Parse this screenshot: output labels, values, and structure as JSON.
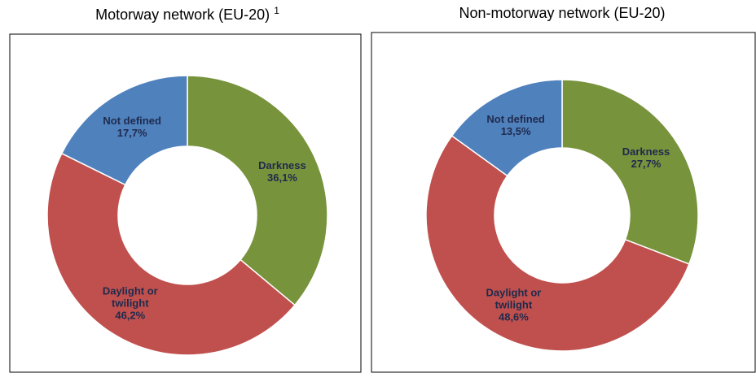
{
  "chart_data": [
    {
      "type": "donut",
      "title": "Motorway network (EU-20)",
      "title_superscript": "1",
      "categories": [
        "Darkness",
        "Daylight or twilight",
        "Not defined"
      ],
      "values": [
        36.1,
        46.2,
        17.7
      ],
      "value_labels": [
        "36,1%",
        "46,2%",
        "17,7%"
      ],
      "colors": [
        "#77933c",
        "#c0504d",
        "#4f81bd"
      ]
    },
    {
      "type": "donut",
      "title": "Non-motorway network (EU-20)",
      "categories": [
        "Darkness",
        "Daylight or twilight",
        "Not defined"
      ],
      "values": [
        27.7,
        48.6,
        13.5
      ],
      "value_labels": [
        "27,7%",
        "48,6%",
        "13,5%"
      ],
      "colors": [
        "#77933c",
        "#c0504d",
        "#4f81bd"
      ]
    }
  ]
}
